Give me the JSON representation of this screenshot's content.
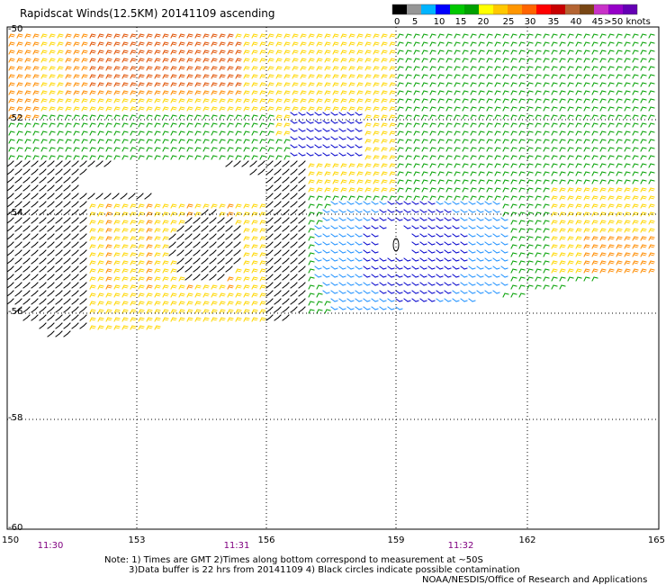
{
  "title": "Rapidscat Winds(12.5KM) 20141109 ascending",
  "legend": {
    "ticks": [
      "0",
      "5",
      "10",
      "15",
      "20",
      "25",
      "30",
      "35",
      "40",
      "45",
      ">50 knots"
    ],
    "colors": [
      "#000000",
      "#969696",
      "#00b4ff",
      "#0000ff",
      "#00c800",
      "#00a000",
      "#ffff00",
      "#ffc800",
      "#ff9600",
      "#ff6400",
      "#ff0000",
      "#c80000",
      "#b46432",
      "#784614",
      "#c832c8",
      "#9600c8",
      "#6400b4"
    ]
  },
  "map": {
    "lon_labels": [
      "150",
      "153",
      "156",
      "159",
      "162",
      "165"
    ],
    "lat_labels": [
      "-52",
      "-54",
      "-56",
      "-58",
      "-60"
    ],
    "top_lat_label": "-50",
    "times": [
      "11:30",
      "11:31",
      "11:32"
    ],
    "time_color": "#800080"
  },
  "notes": {
    "line1": "Note: 1) Times are GMT 2)Times along bottom correspond to measurement at ~50S",
    "line2": "3)Data buffer is 22 hrs from 20141109 4) Black circles indicate possible contamination",
    "line3": "NOAA/NESDIS/Office of Research and Applications"
  },
  "wind_colors": {
    "black": "#000000",
    "green": "#00a000",
    "blue": "#0000cc",
    "cyan": "#1e90ff",
    "yellow": "#ffd700",
    "orange": "#ff8c00",
    "redorange": "#e05000"
  }
}
